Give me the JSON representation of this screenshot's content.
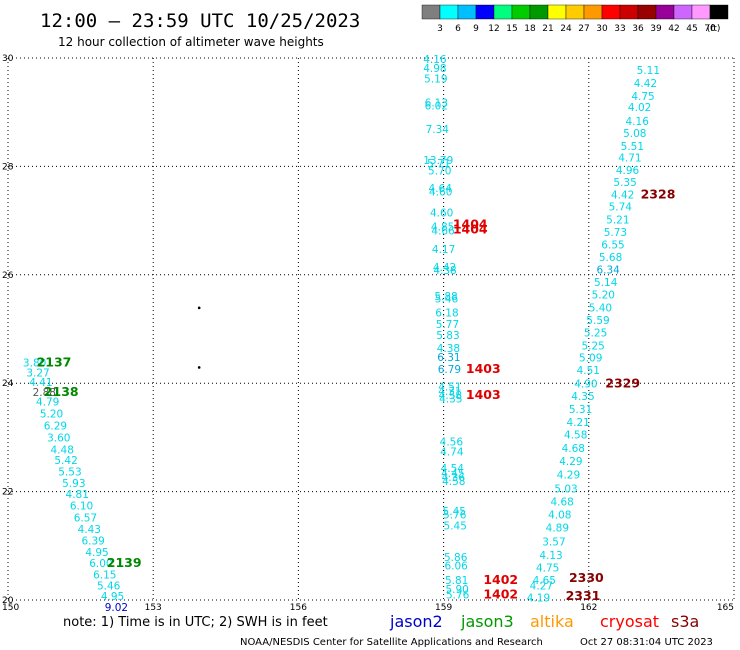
{
  "header": {
    "title": "12:00 – 23:59 UTC 10/25/2023",
    "subtitle": "12 hour collection of altimeter wave heights"
  },
  "colorbar": {
    "colors": [
      "#7f7f7f",
      "#00ffff",
      "#00bfff",
      "#0000ff",
      "#00ff7f",
      "#00cc00",
      "#009900",
      "#ffff00",
      "#ffcc00",
      "#ff9900",
      "#ff0000",
      "#cc0000",
      "#990000",
      "#990099",
      "#cc66ff",
      "#ff99ff",
      "#000000"
    ],
    "labels": [
      "3",
      "6",
      "9",
      "12",
      "15",
      "18",
      "21",
      "24",
      "27",
      "30",
      "33",
      "36",
      "39",
      "42",
      "45",
      "70",
      "(ft)"
    ]
  },
  "footer": {
    "note": "note: 1) Time is in UTC; 2) SWH is in feet",
    "credit": "NOAA/NESDIS Center for Satellite Applications and Research",
    "timestamp": "Oct 27 08:31:04 UTC 2023"
  },
  "satellites": [
    {
      "name": "jason2",
      "color": "#0000cc"
    },
    {
      "name": "jason3",
      "color": "#009900"
    },
    {
      "name": "altika",
      "color": "#ff9900"
    },
    {
      "name": "cryosat",
      "color": "#ff0000"
    },
    {
      "name": "s3a",
      "color": "#880000"
    }
  ],
  "chart_data": {
    "type": "scatter",
    "title": "12 hour collection of altimeter wave heights",
    "xlabel": "",
    "ylabel": "",
    "xlim": [
      150,
      165
    ],
    "ylim": [
      20,
      30
    ],
    "x_ticks": [
      "150",
      "153",
      "156",
      "159",
      "162",
      "165"
    ],
    "y_ticks": [
      "20",
      "22",
      "24",
      "26",
      "28",
      "30"
    ],
    "grid": true,
    "units": "ft",
    "colors": {
      "cyan": "#00d8e8",
      "cyan2": "#00a8e0",
      "grey": "#555555",
      "blue": "#0000cc",
      "green": "#008800",
      "red": "#e00000",
      "darkred": "#880000"
    },
    "swh_labels": [
      {
        "x": 158.82,
        "y": 29.98,
        "t": "4.16",
        "c": "cyan"
      },
      {
        "x": 158.82,
        "y": 29.82,
        "t": "4.98",
        "c": "cyan"
      },
      {
        "x": 158.84,
        "y": 29.62,
        "t": "5.19",
        "c": "cyan"
      },
      {
        "x": 158.85,
        "y": 29.18,
        "t": "6.13",
        "c": "cyan"
      },
      {
        "x": 158.85,
        "y": 29.12,
        "t": "6.02",
        "c": "cyan"
      },
      {
        "x": 158.87,
        "y": 28.69,
        "t": "7.34",
        "c": "cyan"
      },
      {
        "x": 158.89,
        "y": 28.12,
        "t": "13.79",
        "c": "cyan"
      },
      {
        "x": 158.9,
        "y": 28.06,
        "t": "5.71",
        "c": "cyan"
      },
      {
        "x": 158.92,
        "y": 27.92,
        "t": "5.70",
        "c": "cyan"
      },
      {
        "x": 158.93,
        "y": 27.6,
        "t": "4.64",
        "c": "cyan"
      },
      {
        "x": 158.94,
        "y": 27.54,
        "t": "4.60",
        "c": "cyan"
      },
      {
        "x": 158.96,
        "y": 27.15,
        "t": "4.60",
        "c": "cyan"
      },
      {
        "x": 158.98,
        "y": 26.89,
        "t": "4.85",
        "c": "cyan"
      },
      {
        "x": 158.99,
        "y": 26.82,
        "t": "4.66",
        "c": "cyan"
      },
      {
        "x": 159.0,
        "y": 26.48,
        "t": "4.17",
        "c": "cyan"
      },
      {
        "x": 159.02,
        "y": 26.14,
        "t": "4.42",
        "c": "cyan"
      },
      {
        "x": 159.03,
        "y": 26.09,
        "t": "4.38",
        "c": "cyan"
      },
      {
        "x": 159.05,
        "y": 25.61,
        "t": "5.88",
        "c": "cyan"
      },
      {
        "x": 159.06,
        "y": 25.56,
        "t": "5.46",
        "c": "cyan"
      },
      {
        "x": 159.07,
        "y": 25.3,
        "t": "6.18",
        "c": "cyan"
      },
      {
        "x": 159.08,
        "y": 25.09,
        "t": "5.77",
        "c": "cyan"
      },
      {
        "x": 159.09,
        "y": 24.89,
        "t": "5.83",
        "c": "cyan"
      },
      {
        "x": 159.1,
        "y": 24.65,
        "t": "4.38",
        "c": "cyan"
      },
      {
        "x": 159.11,
        "y": 24.48,
        "t": "6.31",
        "c": "cyan2"
      },
      {
        "x": 159.12,
        "y": 24.26,
        "t": "6.79",
        "c": "cyan2"
      },
      {
        "x": 159.13,
        "y": 23.94,
        "t": "4.51",
        "c": "cyan"
      },
      {
        "x": 159.13,
        "y": 23.86,
        "t": "4.31",
        "c": "cyan"
      },
      {
        "x": 159.14,
        "y": 23.78,
        "t": "4.58",
        "c": "cyan"
      },
      {
        "x": 159.15,
        "y": 23.72,
        "t": "4.35",
        "c": "cyan"
      },
      {
        "x": 159.16,
        "y": 22.92,
        "t": "4.56",
        "c": "cyan"
      },
      {
        "x": 159.17,
        "y": 22.74,
        "t": "4.74",
        "c": "cyan"
      },
      {
        "x": 159.18,
        "y": 22.44,
        "t": "4.54",
        "c": "cyan"
      },
      {
        "x": 159.19,
        "y": 22.34,
        "t": "4.45",
        "c": "cyan"
      },
      {
        "x": 159.2,
        "y": 22.27,
        "t": "4.36",
        "c": "cyan"
      },
      {
        "x": 159.21,
        "y": 22.2,
        "t": "4.58",
        "c": "cyan"
      },
      {
        "x": 159.22,
        "y": 21.64,
        "t": "5.45",
        "c": "cyan"
      },
      {
        "x": 159.23,
        "y": 21.58,
        "t": "5.76",
        "c": "cyan"
      },
      {
        "x": 159.24,
        "y": 21.37,
        "t": "5.45",
        "c": "cyan"
      },
      {
        "x": 159.25,
        "y": 20.79,
        "t": "5.86",
        "c": "cyan"
      },
      {
        "x": 159.26,
        "y": 20.64,
        "t": "6.06",
        "c": "cyan"
      },
      {
        "x": 159.27,
        "y": 20.37,
        "t": "5.81",
        "c": "cyan"
      },
      {
        "x": 159.28,
        "y": 20.2,
        "t": "5.90",
        "c": "cyan"
      },
      {
        "x": 159.29,
        "y": 20.1,
        "t": "5.76",
        "c": "cyan"
      },
      {
        "x": 163.23,
        "y": 29.78,
        "t": "5.11",
        "c": "cyan"
      },
      {
        "x": 163.17,
        "y": 29.54,
        "t": "4.42",
        "c": "cyan"
      },
      {
        "x": 163.12,
        "y": 29.3,
        "t": "4.75",
        "c": "cyan"
      },
      {
        "x": 163.05,
        "y": 29.1,
        "t": "4.02",
        "c": "cyan"
      },
      {
        "x": 163.0,
        "y": 28.84,
        "t": "4.16",
        "c": "cyan"
      },
      {
        "x": 162.95,
        "y": 28.62,
        "t": "5.08",
        "c": "cyan"
      },
      {
        "x": 162.9,
        "y": 28.38,
        "t": "5.51",
        "c": "cyan"
      },
      {
        "x": 162.85,
        "y": 28.16,
        "t": "4.71",
        "c": "cyan"
      },
      {
        "x": 162.8,
        "y": 27.93,
        "t": "4.96",
        "c": "cyan"
      },
      {
        "x": 162.75,
        "y": 27.71,
        "t": "5.35",
        "c": "cyan"
      },
      {
        "x": 162.7,
        "y": 27.48,
        "t": "4.42",
        "c": "cyan"
      },
      {
        "x": 162.65,
        "y": 27.26,
        "t": "5.74",
        "c": "cyan"
      },
      {
        "x": 162.6,
        "y": 27.02,
        "t": "5.21",
        "c": "cyan"
      },
      {
        "x": 162.55,
        "y": 26.79,
        "t": "5.73",
        "c": "cyan"
      },
      {
        "x": 162.5,
        "y": 26.56,
        "t": "6.55",
        "c": "cyan"
      },
      {
        "x": 162.45,
        "y": 26.33,
        "t": "5.68",
        "c": "cyan"
      },
      {
        "x": 162.4,
        "y": 26.1,
        "t": "6.34",
        "c": "cyan2"
      },
      {
        "x": 162.35,
        "y": 25.87,
        "t": "5.14",
        "c": "cyan"
      },
      {
        "x": 162.3,
        "y": 25.64,
        "t": "5.20",
        "c": "cyan"
      },
      {
        "x": 162.24,
        "y": 25.4,
        "t": "5.40",
        "c": "cyan"
      },
      {
        "x": 162.19,
        "y": 25.17,
        "t": "5.59",
        "c": "cyan"
      },
      {
        "x": 162.14,
        "y": 24.94,
        "t": "5.25",
        "c": "cyan"
      },
      {
        "x": 162.09,
        "y": 24.7,
        "t": "5.25",
        "c": "cyan"
      },
      {
        "x": 162.04,
        "y": 24.47,
        "t": "5.09",
        "c": "cyan"
      },
      {
        "x": 161.99,
        "y": 24.24,
        "t": "4.51",
        "c": "cyan"
      },
      {
        "x": 161.94,
        "y": 23.99,
        "t": "4.90",
        "c": "cyan"
      },
      {
        "x": 161.88,
        "y": 23.76,
        "t": "4.35",
        "c": "cyan"
      },
      {
        "x": 161.83,
        "y": 23.52,
        "t": "5.31",
        "c": "cyan"
      },
      {
        "x": 161.78,
        "y": 23.28,
        "t": "4.21",
        "c": "cyan"
      },
      {
        "x": 161.73,
        "y": 23.05,
        "t": "4.58",
        "c": "cyan"
      },
      {
        "x": 161.68,
        "y": 22.8,
        "t": "4.68",
        "c": "cyan"
      },
      {
        "x": 161.63,
        "y": 22.56,
        "t": "4.29",
        "c": "cyan"
      },
      {
        "x": 161.58,
        "y": 22.32,
        "t": "4.29",
        "c": "cyan"
      },
      {
        "x": 161.53,
        "y": 22.06,
        "t": "5.03",
        "c": "cyan"
      },
      {
        "x": 161.45,
        "y": 21.82,
        "t": "4.68",
        "c": "cyan"
      },
      {
        "x": 161.4,
        "y": 21.58,
        "t": "4.08",
        "c": "cyan"
      },
      {
        "x": 161.35,
        "y": 21.34,
        "t": "4.89",
        "c": "cyan"
      },
      {
        "x": 161.28,
        "y": 21.08,
        "t": "3.57",
        "c": "cyan"
      },
      {
        "x": 161.22,
        "y": 20.83,
        "t": "4.13",
        "c": "cyan"
      },
      {
        "x": 161.15,
        "y": 20.6,
        "t": "4.75",
        "c": "cyan"
      },
      {
        "x": 161.08,
        "y": 20.37,
        "t": "4.65",
        "c": "cyan"
      },
      {
        "x": 161.02,
        "y": 20.27,
        "t": "4.27",
        "c": "cyan"
      },
      {
        "x": 160.96,
        "y": 20.05,
        "t": "4.19",
        "c": "cyan"
      },
      {
        "x": 150.55,
        "y": 24.38,
        "t": "3.80",
        "c": "cyan"
      },
      {
        "x": 150.62,
        "y": 24.2,
        "t": "3.27",
        "c": "cyan"
      },
      {
        "x": 150.68,
        "y": 24.02,
        "t": "4.41",
        "c": "cyan"
      },
      {
        "x": 150.75,
        "y": 23.84,
        "t": "2.88",
        "c": "grey"
      },
      {
        "x": 150.82,
        "y": 23.66,
        "t": "4.79",
        "c": "cyan"
      },
      {
        "x": 150.9,
        "y": 23.44,
        "t": "5.20",
        "c": "cyan"
      },
      {
        "x": 150.98,
        "y": 23.22,
        "t": "6.29",
        "c": "cyan"
      },
      {
        "x": 151.05,
        "y": 23.0,
        "t": "3.60",
        "c": "cyan"
      },
      {
        "x": 151.12,
        "y": 22.78,
        "t": "4.48",
        "c": "cyan"
      },
      {
        "x": 151.2,
        "y": 22.58,
        "t": "5.42",
        "c": "cyan"
      },
      {
        "x": 151.28,
        "y": 22.37,
        "t": "5.53",
        "c": "cyan"
      },
      {
        "x": 151.36,
        "y": 22.16,
        "t": "5.93",
        "c": "cyan"
      },
      {
        "x": 151.43,
        "y": 21.96,
        "t": "4.81",
        "c": "cyan"
      },
      {
        "x": 151.52,
        "y": 21.74,
        "t": "6.10",
        "c": "cyan"
      },
      {
        "x": 151.6,
        "y": 21.52,
        "t": "6.57",
        "c": "cyan"
      },
      {
        "x": 151.68,
        "y": 21.31,
        "t": "4.43",
        "c": "cyan"
      },
      {
        "x": 151.76,
        "y": 21.1,
        "t": "6.39",
        "c": "cyan"
      },
      {
        "x": 151.84,
        "y": 20.89,
        "t": "4.95",
        "c": "cyan"
      },
      {
        "x": 151.92,
        "y": 20.68,
        "t": "6.00",
        "c": "cyan"
      },
      {
        "x": 152.0,
        "y": 20.47,
        "t": "6.15",
        "c": "cyan"
      },
      {
        "x": 152.08,
        "y": 20.27,
        "t": "5.46",
        "c": "cyan"
      },
      {
        "x": 152.16,
        "y": 20.07,
        "t": "4.95",
        "c": "cyan"
      },
      {
        "x": 152.24,
        "y": 19.87,
        "t": "9.02",
        "c": "blue"
      }
    ],
    "pass_labels": [
      {
        "x": 150.95,
        "y": 24.38,
        "t": "2137",
        "c": "green"
      },
      {
        "x": 151.1,
        "y": 23.84,
        "t": "2138",
        "c": "green"
      },
      {
        "x": 152.4,
        "y": 20.68,
        "t": "2139",
        "c": "green"
      },
      {
        "x": 159.55,
        "y": 26.93,
        "t": "1404",
        "c": "red"
      },
      {
        "x": 159.55,
        "y": 26.84,
        "t": "1404",
        "c": "red"
      },
      {
        "x": 159.82,
        "y": 24.26,
        "t": "1403",
        "c": "red"
      },
      {
        "x": 159.82,
        "y": 23.78,
        "t": "1403",
        "c": "red"
      },
      {
        "x": 160.18,
        "y": 20.37,
        "t": "1402",
        "c": "red"
      },
      {
        "x": 160.18,
        "y": 20.1,
        "t": "1402",
        "c": "red"
      },
      {
        "x": 163.43,
        "y": 27.48,
        "t": "2328",
        "c": "darkred"
      },
      {
        "x": 162.7,
        "y": 23.99,
        "t": "2329",
        "c": "darkred"
      },
      {
        "x": 161.95,
        "y": 20.41,
        "t": "2330",
        "c": "darkred"
      },
      {
        "x": 161.88,
        "y": 20.07,
        "t": "2331",
        "c": "darkred"
      }
    ],
    "dots": [
      {
        "x": 153.95,
        "y": 25.39
      },
      {
        "x": 153.95,
        "y": 24.29
      }
    ]
  }
}
